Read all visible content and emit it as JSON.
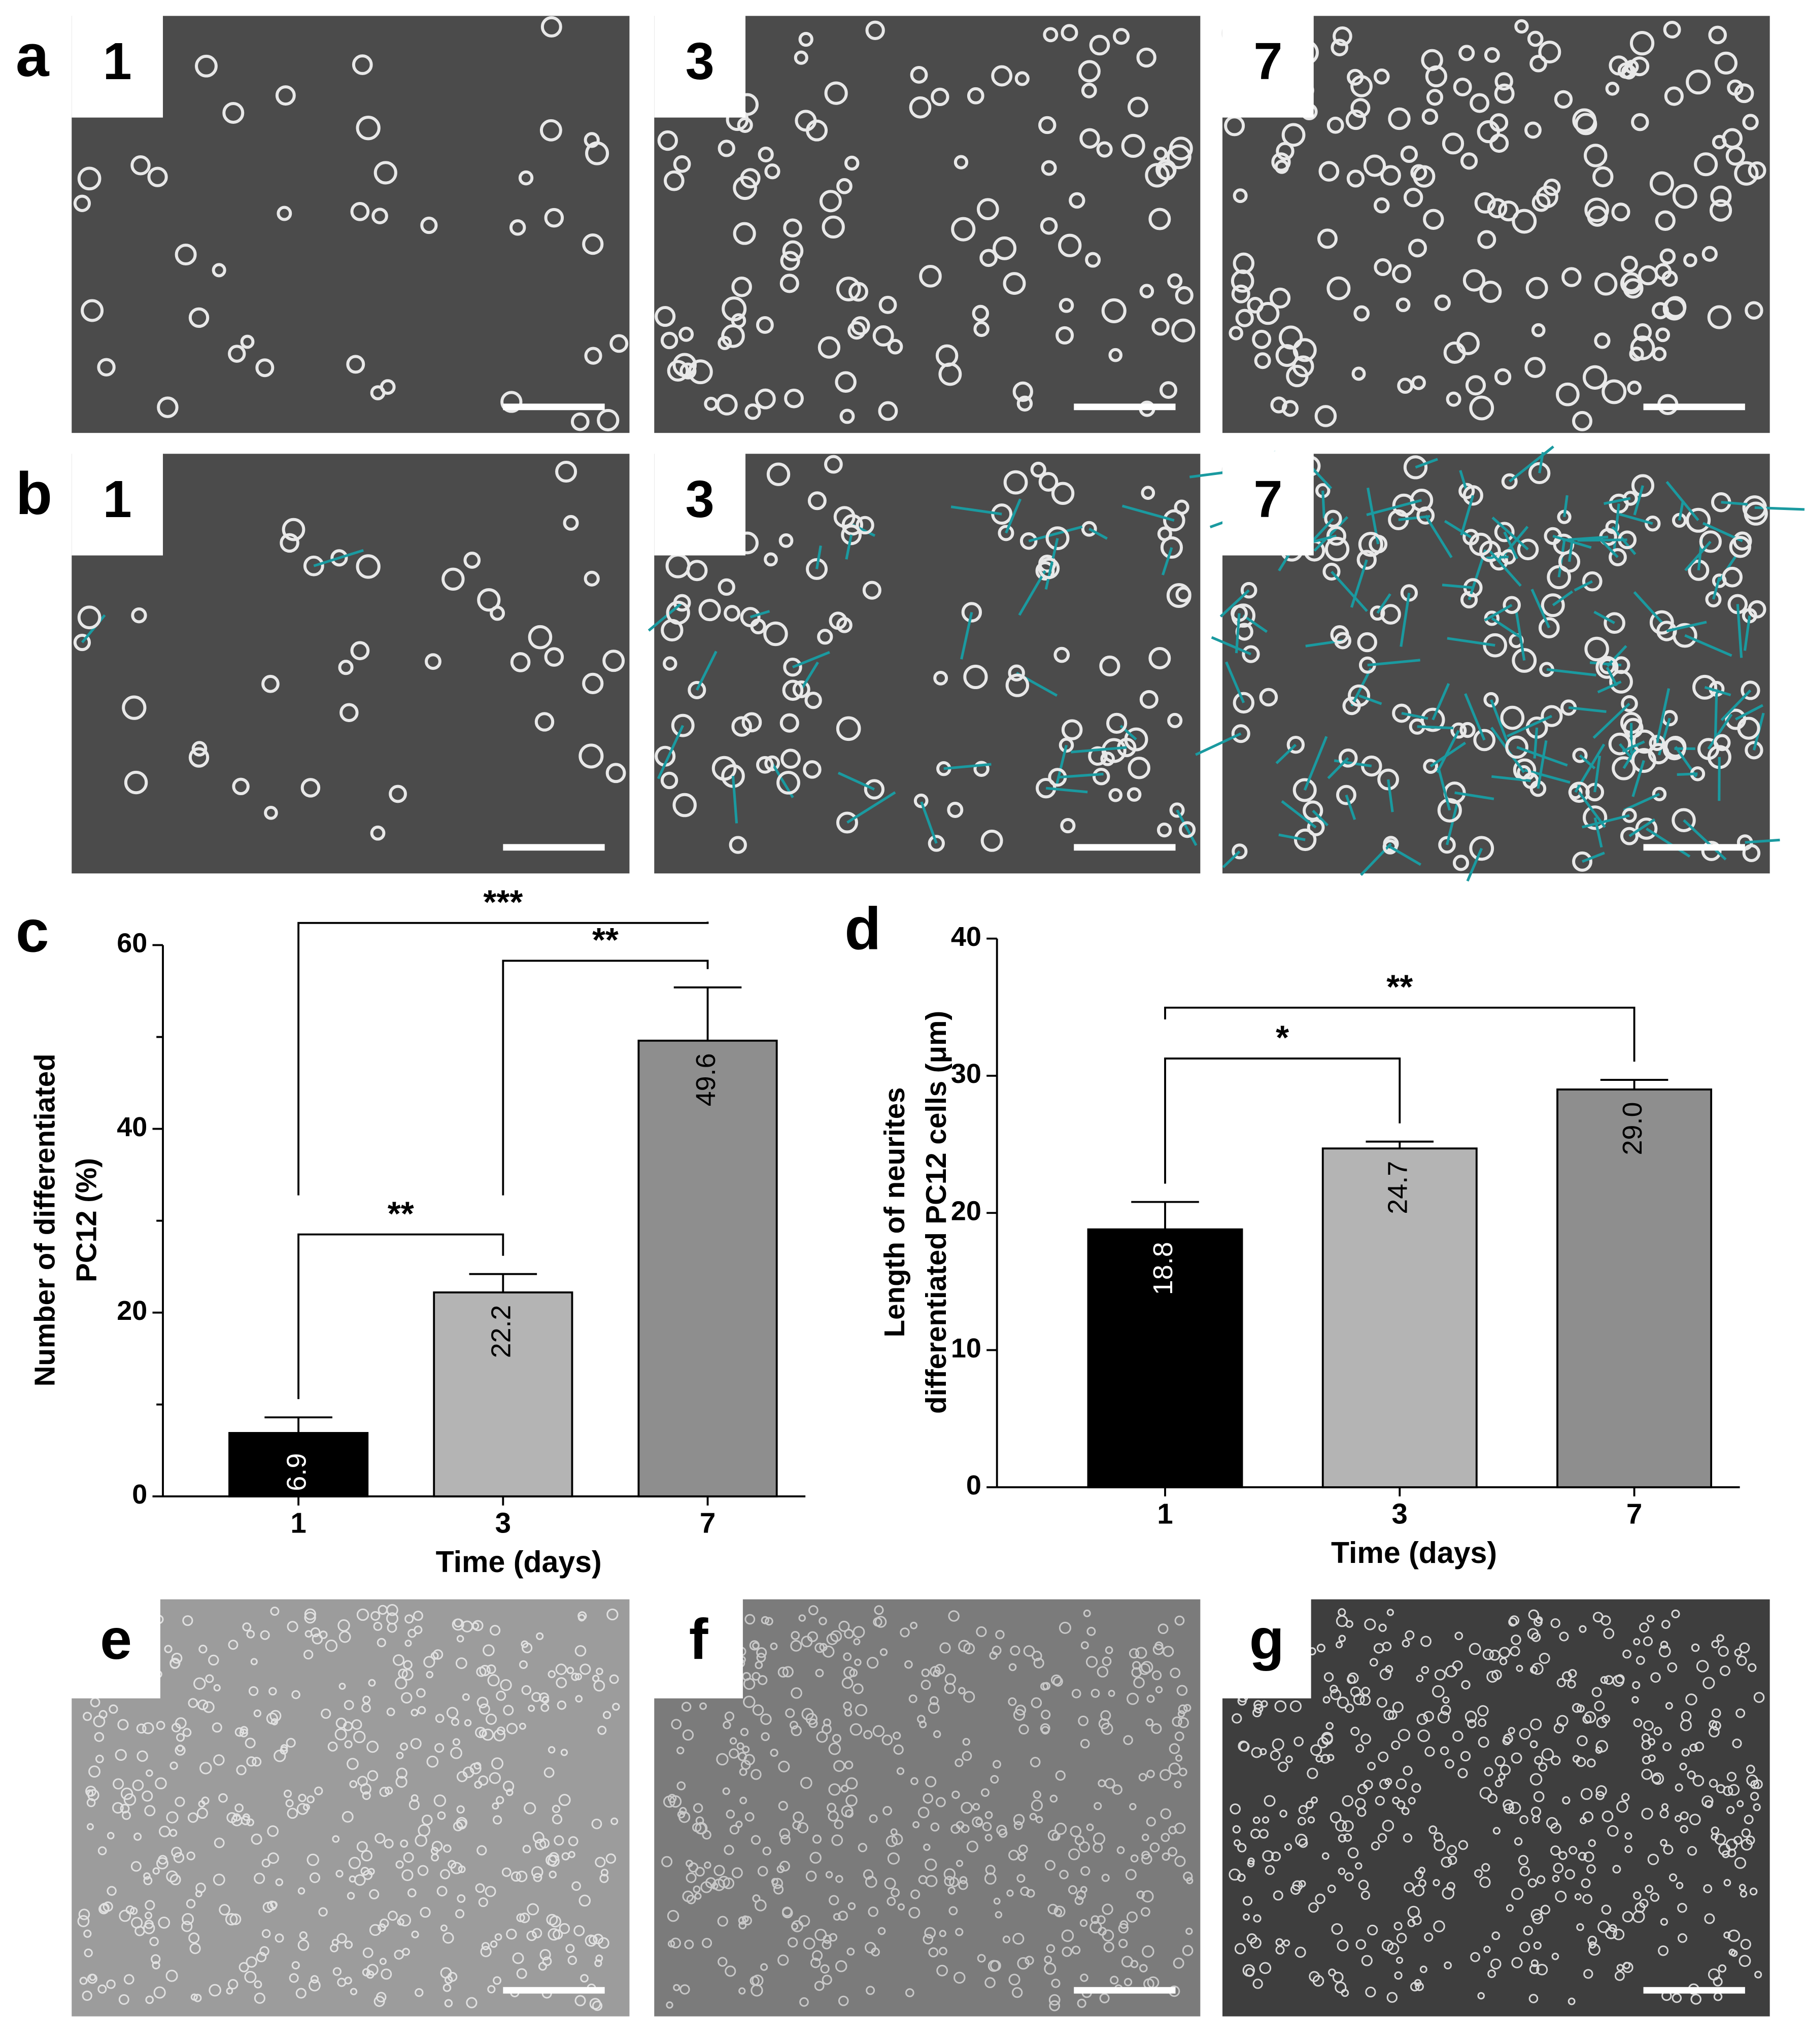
{
  "image_rows": [
    {
      "label": "a",
      "days": [
        "1",
        "3",
        "7"
      ]
    },
    {
      "label": "b",
      "days": [
        "1",
        "3",
        "7"
      ]
    }
  ],
  "bottom_panels": [
    "e",
    "f",
    "g"
  ],
  "chart_data": [
    {
      "type": "bar",
      "label": "c",
      "y_label": [
        "Number of differentiated",
        "PC12 (%)"
      ],
      "x_label": "Time (days)",
      "categories": [
        "1",
        "3",
        "7"
      ],
      "values": [
        6.9,
        22.2,
        49.6
      ],
      "value_labels": [
        "6.9",
        "22.2",
        "49.6"
      ],
      "errors": [
        1.7,
        2.0,
        5.8
      ],
      "colors": [
        "#000000",
        "#b4b4b4",
        "#8e8e8e"
      ],
      "ylim": [
        0,
        60
      ],
      "yticks": [
        0,
        20,
        40,
        60
      ],
      "minor_yticks": [
        10,
        30,
        50
      ],
      "annotations": [
        {
          "from": 0,
          "to": 2,
          "label": "***"
        },
        {
          "from": 1,
          "to": 2,
          "label": "**"
        },
        {
          "from": 0,
          "to": 1,
          "label": "**"
        }
      ]
    },
    {
      "type": "bar",
      "label": "d",
      "y_label": [
        "Length of neurites",
        "differentiated PC12 cells (μm)"
      ],
      "x_label": "Time (days)",
      "categories": [
        "1",
        "3",
        "7"
      ],
      "values": [
        18.8,
        24.7,
        29.0
      ],
      "value_labels": [
        "18.8",
        "24.7",
        "29.0"
      ],
      "errors": [
        2.0,
        0.5,
        0.7
      ],
      "colors": [
        "#000000",
        "#b4b4b4",
        "#8e8e8e"
      ],
      "ylim": [
        0,
        40
      ],
      "yticks": [
        0,
        10,
        20,
        30,
        40
      ],
      "annotations": [
        {
          "from": 0,
          "to": 2,
          "label": "**"
        },
        {
          "from": 0,
          "to": 1,
          "label": "*"
        }
      ]
    }
  ]
}
